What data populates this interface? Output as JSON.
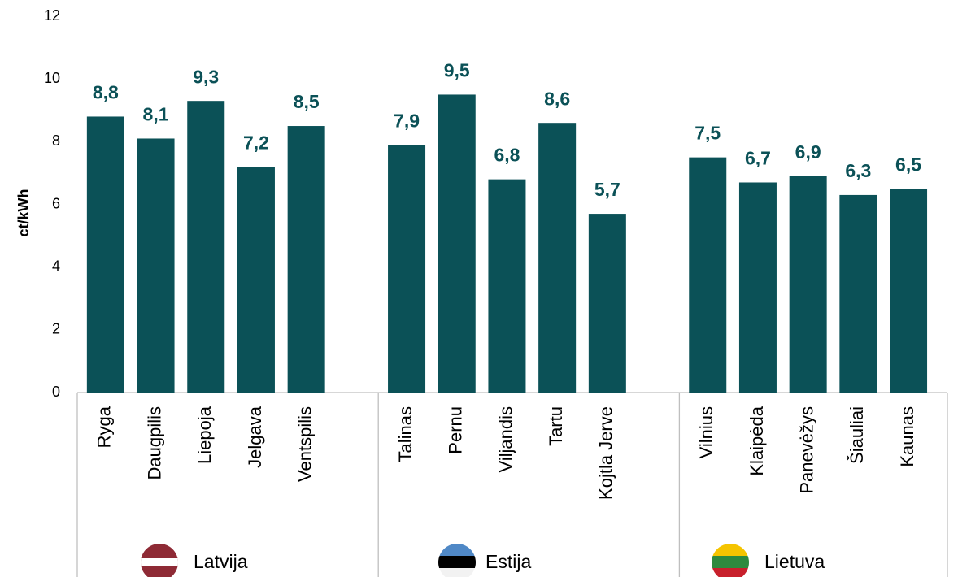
{
  "chart_data": {
    "type": "bar",
    "y_label": "ct/kWh",
    "color": "#0b5157",
    "ylim": [
      0,
      12
    ],
    "yticks": [
      0,
      2,
      4,
      6,
      8,
      10,
      12
    ],
    "groups": [
      {
        "name": "Latvija",
        "categories": [
          "Ryga",
          "Daugpilis",
          "Liepoja",
          "Jelgava",
          "Ventspilis"
        ],
        "values": [
          8.8,
          8.1,
          9.3,
          7.2,
          8.5
        ],
        "value_labels": [
          "8,8",
          "8,1",
          "9,3",
          "7,2",
          "8,5"
        ]
      },
      {
        "name": "Estija",
        "categories": [
          "Talinas",
          "Pernu",
          "Viljandis",
          "Tartu",
          "Kojtla Jerve"
        ],
        "values": [
          7.9,
          9.5,
          6.8,
          8.6,
          5.7
        ],
        "value_labels": [
          "7,9",
          "9,5",
          "6,8",
          "8,6",
          "5,7"
        ]
      },
      {
        "name": "Lietuva",
        "categories": [
          "Vilnius",
          "Klaipėda",
          "Panevėžys",
          "Šiauliai",
          "Kaunas"
        ],
        "values": [
          7.5,
          6.7,
          6.9,
          6.3,
          6.5
        ],
        "value_labels": [
          "7,5",
          "6,7",
          "6,9",
          "6,3",
          "6,5"
        ]
      }
    ]
  }
}
